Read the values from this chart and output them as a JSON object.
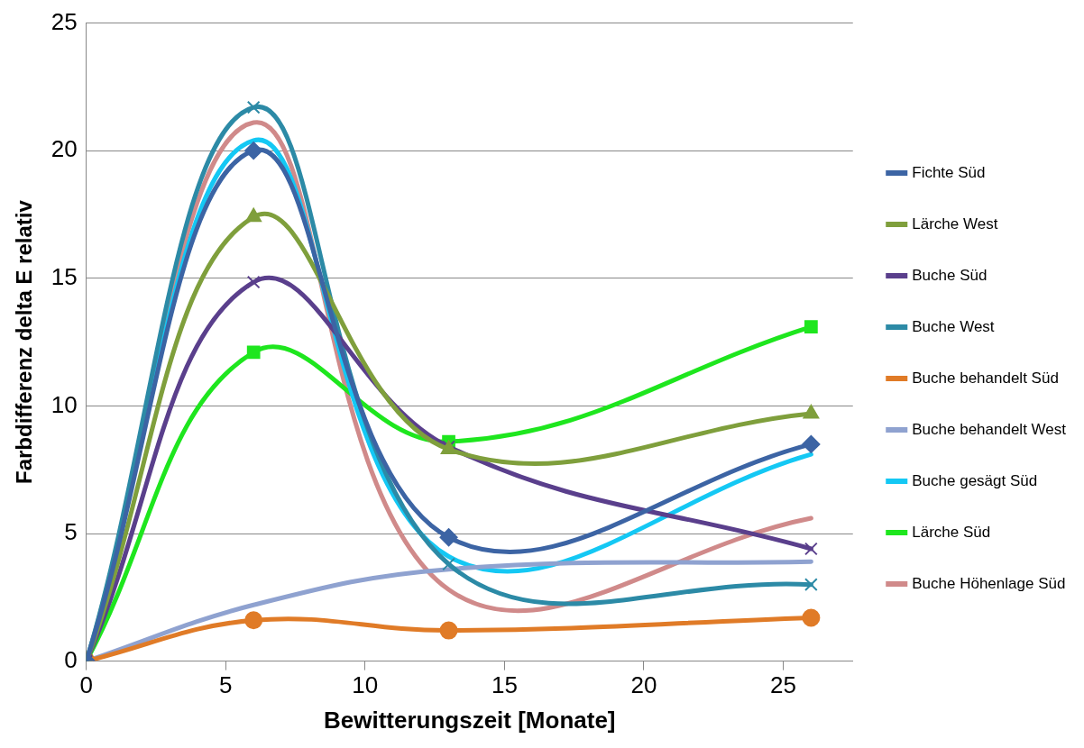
{
  "chart_data": {
    "type": "line",
    "xlabel": "Bewitterungszeit [Monate]",
    "ylabel": "Farbdifferenz delta E relativ",
    "x": [
      0,
      6,
      13,
      26
    ],
    "xlim": [
      0,
      27.5
    ],
    "xticks": [
      0,
      5,
      10,
      15,
      20,
      25
    ],
    "ylim": [
      0,
      25
    ],
    "yticks": [
      0,
      5,
      10,
      15,
      20,
      25
    ],
    "grid": "y",
    "legend": "right",
    "series": [
      {
        "name": "Fichte Süd",
        "color": "#3c64a4",
        "marker": "diamond",
        "values": [
          0,
          20.0,
          4.85,
          8.5
        ]
      },
      {
        "name": "Lärche West",
        "color": "#7f9f3c",
        "marker": "triangle",
        "values": [
          0,
          17.4,
          8.3,
          9.7
        ]
      },
      {
        "name": "Buche Süd",
        "color": "#5a3f8c",
        "marker": "cross",
        "values": [
          0,
          14.85,
          8.4,
          4.4
        ]
      },
      {
        "name": "Buche West",
        "color": "#2c8aa6",
        "marker": "cross",
        "values": [
          0,
          21.7,
          3.8,
          3.0
        ]
      },
      {
        "name": "Buche behandelt Süd",
        "color": "#e07b27",
        "marker": "circle",
        "values": [
          0,
          1.6,
          1.2,
          1.7
        ]
      },
      {
        "name": "Buche behandelt West",
        "color": "#8fa2d0",
        "marker": "none",
        "values": [
          0,
          2.2,
          3.6,
          3.9
        ]
      },
      {
        "name": "Buche gesägt Süd",
        "color": "#14c8f4",
        "marker": "none",
        "values": [
          0,
          20.4,
          4.1,
          8.1
        ]
      },
      {
        "name": "Lärche Süd",
        "color": "#1ee61e",
        "marker": "square",
        "values": [
          0,
          12.1,
          8.6,
          13.1
        ]
      },
      {
        "name": "Buche Höhenlage Süd",
        "color": "#d08a8a",
        "marker": "none",
        "values": [
          0,
          21.1,
          2.8,
          5.6
        ]
      }
    ]
  }
}
